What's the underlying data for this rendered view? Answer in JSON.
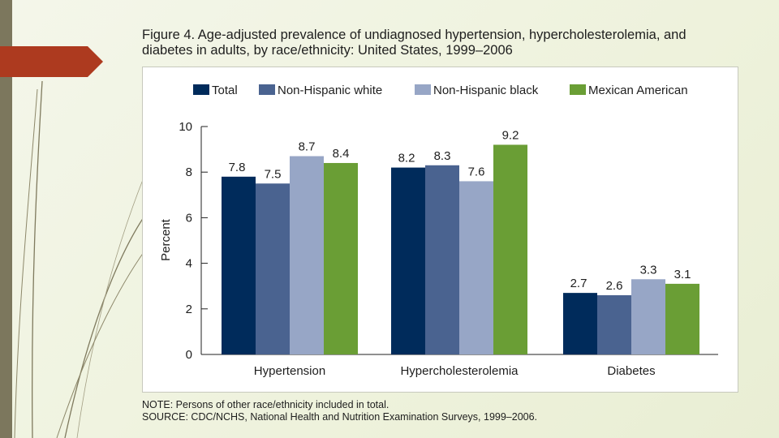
{
  "title": "Figure 4. Age-adjusted prevalence of undiagnosed hypertension, hypercholesterolemia, and\ndiabetes in adults, by race/ethnicity: United States, 1999–2006",
  "note": "NOTE: Persons of other race/ethnicity included in total.",
  "source": "SOURCE: CDC/NCHS, National Health and Nutrition Examination Surveys, 1999–2006.",
  "colors": {
    "total": "#002b5b",
    "white": "#4a6390",
    "black": "#97a6c6",
    "mexican": "#6a9e35"
  },
  "chart_data": {
    "type": "bar",
    "title": "",
    "xlabel": "",
    "ylabel": "Percent",
    "ylim": [
      0,
      10
    ],
    "yticks": [
      "0",
      "2",
      "4",
      "6",
      "8",
      "10"
    ],
    "categories": [
      "Hypertension",
      "Hypercholesterolemia",
      "Diabetes"
    ],
    "series": [
      {
        "name": "Total",
        "values": [
          7.8,
          8.2,
          2.7
        ],
        "color": "#002b5b"
      },
      {
        "name": "Non-Hispanic white",
        "values": [
          7.5,
          8.3,
          2.6
        ],
        "color": "#4a6390"
      },
      {
        "name": "Non-Hispanic black",
        "values": [
          8.7,
          7.6,
          3.3
        ],
        "color": "#97a6c6"
      },
      {
        "name": "Mexican American",
        "values": [
          8.4,
          9.2,
          3.1
        ],
        "color": "#6a9e35"
      }
    ],
    "legend_position": "top"
  }
}
